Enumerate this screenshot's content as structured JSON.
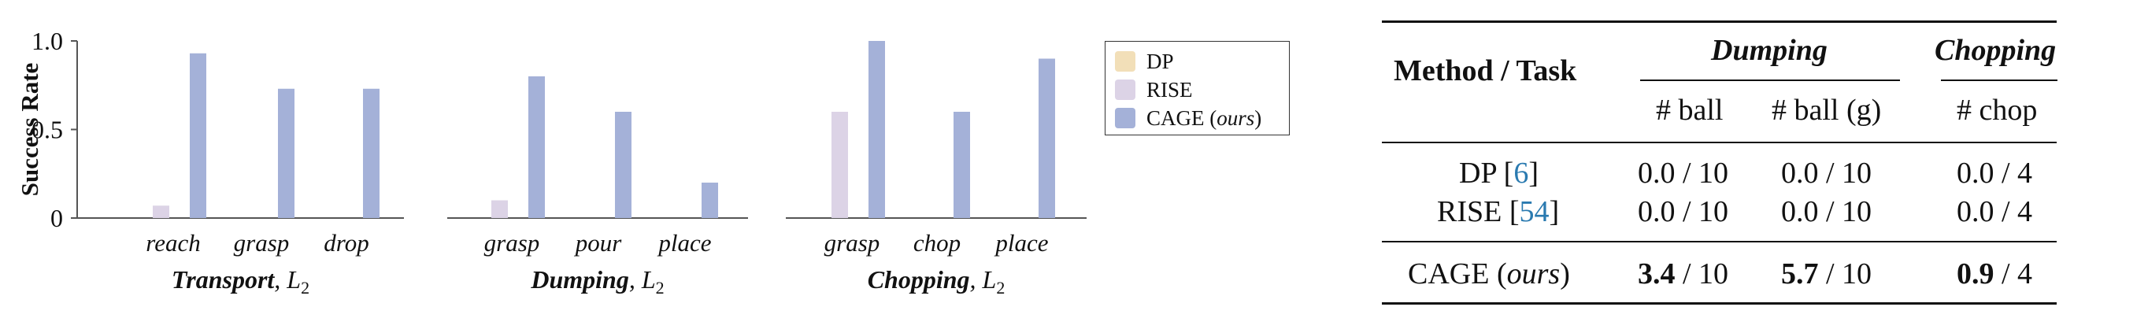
{
  "chart_data": [
    {
      "type": "bar",
      "title": "Transport",
      "title_suffix": ", L",
      "title_sub": "2",
      "ylabel": "Success Rate",
      "yticks": [
        "0",
        "0.5",
        "1.0"
      ],
      "ylim": [
        0,
        1.0
      ],
      "categories": [
        "reach",
        "grasp",
        "drop"
      ],
      "series": [
        {
          "name": "DP",
          "values": [
            0,
            0,
            0
          ]
        },
        {
          "name": "RISE",
          "values": [
            0.07,
            0,
            0
          ]
        },
        {
          "name": "CAGE (ours)",
          "values": [
            0.93,
            0.73,
            0.73
          ]
        }
      ]
    },
    {
      "type": "bar",
      "title": "Dumping",
      "title_suffix": ", L",
      "title_sub": "2",
      "ylim": [
        0,
        1.0
      ],
      "categories": [
        "grasp",
        "pour",
        "place"
      ],
      "series": [
        {
          "name": "DP",
          "values": [
            0,
            0,
            0
          ]
        },
        {
          "name": "RISE",
          "values": [
            0.1,
            0,
            0
          ]
        },
        {
          "name": "CAGE (ours)",
          "values": [
            0.8,
            0.6,
            0.2
          ]
        }
      ]
    },
    {
      "type": "bar",
      "title": "Chopping",
      "title_suffix": ", L",
      "title_sub": "2",
      "ylim": [
        0,
        1.0
      ],
      "categories": [
        "grasp",
        "chop",
        "place"
      ],
      "series": [
        {
          "name": "DP",
          "values": [
            0,
            0,
            0
          ]
        },
        {
          "name": "RISE",
          "values": [
            0.6,
            0,
            0
          ]
        },
        {
          "name": "CAGE (ours)",
          "values": [
            1.0,
            0.6,
            0.9
          ]
        }
      ]
    },
    {
      "type": "table",
      "header": {
        "method": "Method / Task",
        "groups": [
          "Dumping",
          "Chopping"
        ],
        "columns": [
          "# ball",
          "# ball (g)",
          "# chop"
        ]
      },
      "rows": [
        {
          "method": "DP",
          "ref": "6",
          "cells": [
            [
              "0.0",
              " / 10"
            ],
            [
              "0.0",
              " / 10"
            ],
            [
              "0.0",
              " / 4"
            ]
          ],
          "bold": false
        },
        {
          "method": "RISE",
          "ref": "54",
          "cells": [
            [
              "0.0",
              " / 10"
            ],
            [
              "0.0",
              " / 10"
            ],
            [
              "0.0",
              " / 4"
            ]
          ],
          "bold": false
        },
        {
          "method": "CAGE",
          "method_suffix": "ours",
          "cells": [
            [
              "3.4",
              " / 10"
            ],
            [
              "5.7",
              " / 10"
            ],
            [
              "0.9",
              " / 4"
            ]
          ],
          "bold": true
        }
      ]
    }
  ],
  "legend": [
    {
      "label": "DP",
      "color": "#f2dfb8"
    },
    {
      "label": "RISE",
      "color": "#dcd3e6"
    },
    {
      "label": "CAGE (",
      "label_it": "ours",
      "label_end": ")",
      "color": "#a4b1d8"
    }
  ],
  "colors": {
    "DP": "#f2dfb8",
    "RISE": "#dcd3e6",
    "CAGE": "#a4b1d8",
    "axis": "#555555"
  }
}
